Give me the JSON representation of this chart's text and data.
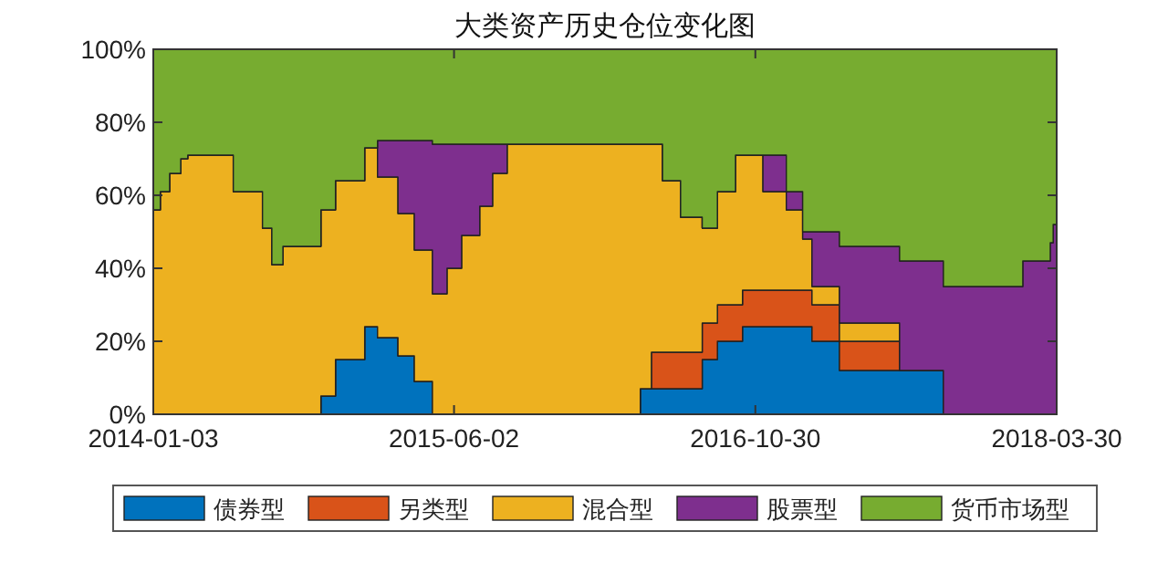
{
  "chart_data": {
    "type": "area",
    "title": "大类资产历史仓位变化图",
    "stacked": true,
    "x": [
      "2014-01-03",
      "2014-01-15",
      "2014-01-31",
      "2014-02-19",
      "2014-03-03",
      "2014-05-20",
      "2014-07-09",
      "2014-07-25",
      "2014-08-13",
      "2014-10-17",
      "2014-11-11",
      "2014-12-31",
      "2015-01-22",
      "2015-02-26",
      "2015-03-26",
      "2015-04-26",
      "2015-05-21",
      "2015-06-15",
      "2015-07-16",
      "2015-08-07",
      "2015-09-01",
      "2016-04-16",
      "2016-05-05",
      "2016-05-24",
      "2016-06-24",
      "2016-07-31",
      "2016-08-26",
      "2016-09-26",
      "2016-10-08",
      "2016-11-12",
      "2016-12-22",
      "2017-01-19",
      "2017-02-04",
      "2017-03-23",
      "2017-07-04",
      "2017-09-17",
      "2018-01-31",
      "2018-03-19",
      "2018-03-24",
      "2018-03-30"
    ],
    "series": [
      {
        "name": "债券型",
        "color": "#0072bd",
        "values": [
          0,
          0,
          0,
          0,
          0,
          0,
          0,
          0,
          0,
          5,
          15,
          24,
          21,
          16,
          9,
          0,
          0,
          0,
          0,
          0,
          0,
          7,
          7,
          7,
          7,
          15,
          20,
          20,
          24,
          24,
          24,
          24,
          20,
          12,
          12,
          0,
          0,
          0,
          0,
          0
        ]
      },
      {
        "name": "另类型",
        "color": "#d95319",
        "values": [
          0,
          0,
          0,
          0,
          0,
          0,
          0,
          0,
          0,
          0,
          0,
          0,
          0,
          0,
          0,
          0,
          0,
          0,
          0,
          0,
          0,
          0,
          10,
          10,
          10,
          10,
          10,
          10,
          10,
          10,
          10,
          10,
          10,
          8,
          0,
          0,
          0,
          0,
          0,
          0
        ]
      },
      {
        "name": "混合型",
        "color": "#edb120",
        "values": [
          56,
          61,
          66,
          70,
          71,
          61,
          51,
          41,
          46,
          51,
          49,
          49,
          44,
          39,
          36,
          33,
          40,
          49,
          57,
          66,
          74,
          67,
          57,
          47,
          37,
          26,
          31,
          41,
          37,
          27,
          22,
          14,
          5,
          5,
          0,
          0,
          0,
          0,
          0,
          0
        ]
      },
      {
        "name": "股票型",
        "color": "#7e2f8e",
        "values": [
          0,
          0,
          0,
          0,
          0,
          0,
          0,
          0,
          0,
          0,
          0,
          0,
          10,
          20,
          30,
          41,
          34,
          25,
          17,
          8,
          0,
          0,
          0,
          0,
          0,
          0,
          0,
          0,
          0,
          10,
          5,
          2,
          15,
          21,
          30,
          35,
          42,
          47,
          52,
          52
        ]
      },
      {
        "name": "货币市场型",
        "color": "#77ac30",
        "values": [
          44,
          39,
          34,
          30,
          29,
          39,
          49,
          59,
          54,
          44,
          36,
          27,
          25,
          25,
          25,
          26,
          26,
          26,
          26,
          26,
          26,
          26,
          26,
          36,
          46,
          49,
          39,
          29,
          29,
          29,
          39,
          50,
          50,
          54,
          58,
          65,
          58,
          53,
          48,
          48
        ]
      }
    ],
    "xlim": [
      "2014-01-03",
      "2018-03-30"
    ],
    "xticks": [
      {
        "value": "2014-01-03",
        "label": "2014-01-03"
      },
      {
        "value": "2015-06-02",
        "label": "2015-06-02"
      },
      {
        "value": "2016-10-30",
        "label": "2016-10-30"
      },
      {
        "value": "2018-03-30",
        "label": "2018-03-30"
      }
    ],
    "ylim": [
      0,
      100
    ],
    "yticks": [
      {
        "value": 0,
        "label": "0%"
      },
      {
        "value": 20,
        "label": "20%"
      },
      {
        "value": 40,
        "label": "40%"
      },
      {
        "value": 60,
        "label": "60%"
      },
      {
        "value": 80,
        "label": "80%"
      },
      {
        "value": 100,
        "label": "100%"
      }
    ],
    "legend": "bottom",
    "grid": false
  }
}
